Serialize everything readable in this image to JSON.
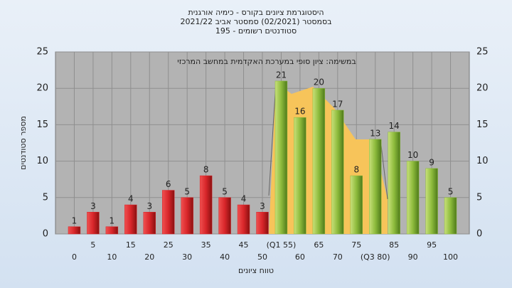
{
  "chart_data": {
    "type": "bar",
    "title": [
      "היסטוגרמת ציונים בקורס - כימיה אורגנית",
      "בסמסטר  (02/2021)  סמסטר אביב  2021/22",
      "סטודנטים רשומים - 195"
    ],
    "annotation": "במשימה: ציון סופי במערכת האקדמית במחשב המרכזי",
    "y_label": "מספר סטודנטים",
    "x_label": "טווח ציונים",
    "categories": [
      "0",
      "5",
      "10",
      "15",
      "20",
      "25",
      "30",
      "35",
      "40",
      "45",
      "50",
      "(Q1 55)",
      "60",
      "65",
      "70",
      "75",
      "(Q3 80)",
      "85",
      "90",
      "95",
      "100"
    ],
    "series": [
      {
        "color": "#d8262a",
        "values": [
          1,
          3,
          1,
          4,
          3,
          6,
          5,
          8,
          5,
          4,
          3,
          null,
          null,
          null,
          null,
          null,
          null,
          null,
          null,
          null,
          null
        ]
      },
      {
        "color": "#8dbb3c",
        "values": [
          null,
          null,
          null,
          null,
          null,
          null,
          null,
          null,
          null,
          null,
          null,
          21,
          16,
          20,
          17,
          8,
          13,
          14,
          10,
          9,
          5
        ]
      }
    ],
    "ylim": [
      0,
      25
    ],
    "yticks": [
      0,
      5,
      10,
      15,
      20,
      25
    ],
    "grid": true
  }
}
